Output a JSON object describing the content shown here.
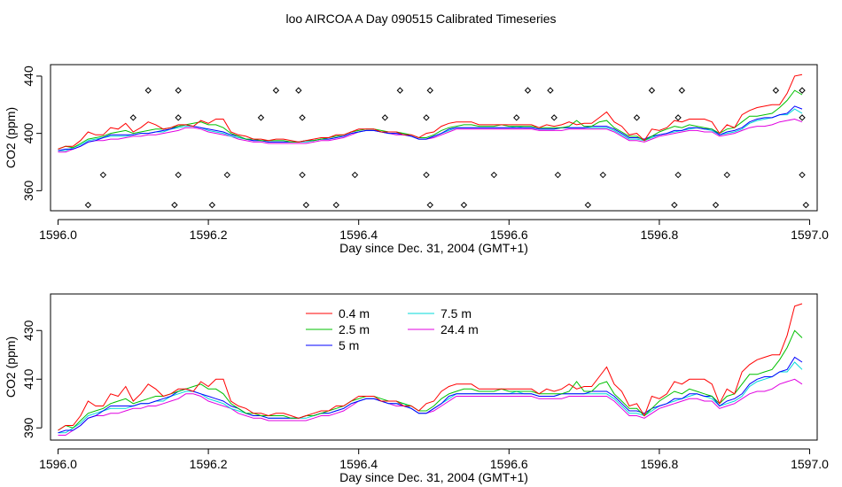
{
  "title": "loo AIRCOA A  Day 090515  Calibrated Timeseries",
  "colors": {
    "0.4 m": "#ff0000",
    "2.5 m": "#00c000",
    "5 m": "#0000ff",
    "7.5 m": "#00d8d8",
    "24.4 m": "#e000e0"
  },
  "chart_data": [
    {
      "type": "line",
      "title": "loo AIRCOA A  Day 090515  Calibrated Timeseries",
      "xlabel": "Day since Dec. 31, 2004 (GMT+1)",
      "ylabel": "CO2 (ppm)",
      "xlim": [
        1595.99,
        1597.01
      ],
      "ylim": [
        346,
        448
      ],
      "xticks": [
        1596.0,
        1596.2,
        1596.4,
        1596.6,
        1596.8,
        1597.0
      ],
      "xticklabels": [
        "1596.0",
        "1596.2",
        "1596.4",
        "1596.6",
        "1596.8",
        "1597.0"
      ],
      "yticks": [
        360,
        400,
        440
      ],
      "yticklabels": [
        "360",
        "400",
        "440"
      ],
      "legend": "none",
      "grid": false,
      "x": [
        1596.0,
        1596.01,
        1596.02,
        1596.03,
        1596.04,
        1596.05,
        1596.06,
        1596.07,
        1596.08,
        1596.09,
        1596.1,
        1596.11,
        1596.12,
        1596.13,
        1596.14,
        1596.15,
        1596.16,
        1596.17,
        1596.18,
        1596.19,
        1596.2,
        1596.21,
        1596.22,
        1596.23,
        1596.24,
        1596.25,
        1596.26,
        1596.27,
        1596.28,
        1596.29,
        1596.3,
        1596.31,
        1596.32,
        1596.33,
        1596.34,
        1596.35,
        1596.36,
        1596.37,
        1596.38,
        1596.39,
        1596.4,
        1596.41,
        1596.42,
        1596.43,
        1596.44,
        1596.45,
        1596.46,
        1596.47,
        1596.48,
        1596.49,
        1596.5,
        1596.51,
        1596.52,
        1596.53,
        1596.54,
        1596.55,
        1596.56,
        1596.57,
        1596.58,
        1596.59,
        1596.6,
        1596.61,
        1596.62,
        1596.63,
        1596.64,
        1596.65,
        1596.66,
        1596.67,
        1596.68,
        1596.69,
        1596.7,
        1596.71,
        1596.72,
        1596.73,
        1596.74,
        1596.75,
        1596.76,
        1596.77,
        1596.78,
        1596.79,
        1596.8,
        1596.81,
        1596.82,
        1596.83,
        1596.84,
        1596.85,
        1596.86,
        1596.87,
        1596.88,
        1596.89,
        1596.9,
        1596.91,
        1596.92,
        1596.93,
        1596.94,
        1596.95,
        1596.96,
        1596.97,
        1596.98,
        1596.99
      ],
      "series": [
        {
          "name": "0.4 m",
          "values": [
            389,
            391,
            391,
            395,
            401,
            399,
            399,
            404,
            403,
            407,
            401,
            404,
            408,
            406,
            403,
            404,
            406,
            406,
            405,
            409,
            407,
            410,
            410,
            401,
            399,
            398,
            396,
            396,
            395,
            396,
            396,
            395,
            394,
            395,
            396,
            397,
            397,
            399,
            399,
            401,
            403,
            403,
            403,
            401,
            401,
            401,
            399,
            399,
            397,
            400,
            401,
            405,
            407,
            408,
            408,
            408,
            406,
            406,
            406,
            406,
            406,
            406,
            406,
            406,
            404,
            406,
            405,
            406,
            408,
            406,
            407,
            407,
            411,
            415,
            408,
            405,
            399,
            400,
            395,
            403,
            402,
            404,
            409,
            408,
            410,
            410,
            410,
            408,
            400,
            406,
            404,
            413,
            416,
            418,
            419,
            420,
            420,
            428,
            440,
            441
          ]
        },
        {
          "name": "2.5 m",
          "values": [
            389,
            391,
            390,
            393,
            396,
            397,
            398,
            400,
            401,
            402,
            400,
            401,
            402,
            403,
            403,
            404,
            405,
            406,
            407,
            408,
            406,
            406,
            404,
            400,
            398,
            396,
            396,
            395,
            395,
            395,
            395,
            394,
            394,
            395,
            395,
            396,
            397,
            398,
            399,
            401,
            402,
            403,
            403,
            402,
            401,
            401,
            400,
            399,
            397,
            397,
            399,
            402,
            404,
            405,
            406,
            406,
            405,
            405,
            405,
            406,
            405,
            405,
            405,
            405,
            404,
            404,
            404,
            404,
            405,
            409,
            405,
            405,
            408,
            409,
            404,
            401,
            398,
            398,
            395,
            398,
            401,
            403,
            405,
            404,
            406,
            405,
            404,
            403,
            400,
            403,
            404,
            408,
            412,
            412,
            413,
            414,
            418,
            423,
            430,
            427
          ]
        },
        {
          "name": "5 m",
          "values": [
            388,
            389,
            389,
            391,
            394,
            395,
            397,
            399,
            399,
            399,
            399,
            400,
            400,
            401,
            402,
            403,
            405,
            406,
            405,
            404,
            403,
            402,
            401,
            399,
            398,
            396,
            395,
            395,
            394,
            394,
            394,
            394,
            394,
            395,
            395,
            396,
            396,
            397,
            398,
            400,
            401,
            402,
            402,
            401,
            400,
            400,
            399,
            398,
            396,
            396,
            398,
            400,
            403,
            404,
            404,
            404,
            404,
            404,
            404,
            404,
            404,
            404,
            404,
            404,
            403,
            403,
            403,
            404,
            404,
            404,
            404,
            405,
            405,
            405,
            403,
            400,
            397,
            397,
            396,
            398,
            399,
            400,
            402,
            402,
            404,
            404,
            403,
            403,
            399,
            401,
            402,
            404,
            408,
            410,
            411,
            411,
            413,
            414,
            419,
            417
          ]
        },
        {
          "name": "7.5 m",
          "values": [
            388,
            388,
            390,
            392,
            395,
            396,
            397,
            398,
            398,
            398,
            399,
            400,
            400,
            401,
            401,
            403,
            404,
            405,
            405,
            404,
            402,
            401,
            400,
            398,
            397,
            396,
            395,
            395,
            394,
            394,
            394,
            394,
            394,
            394,
            395,
            396,
            396,
            397,
            398,
            400,
            401,
            402,
            402,
            401,
            400,
            400,
            400,
            398,
            396,
            396,
            398,
            400,
            402,
            404,
            404,
            404,
            404,
            404,
            404,
            404,
            404,
            405,
            404,
            404,
            403,
            403,
            403,
            404,
            404,
            404,
            404,
            404,
            404,
            404,
            402,
            399,
            396,
            396,
            395,
            397,
            399,
            400,
            401,
            402,
            403,
            404,
            403,
            402,
            399,
            400,
            401,
            403,
            407,
            409,
            410,
            411,
            413,
            413,
            417,
            414
          ]
        },
        {
          "name": "24.4 m",
          "values": [
            387,
            387,
            389,
            391,
            394,
            395,
            395,
            396,
            396,
            397,
            398,
            398,
            399,
            399,
            400,
            401,
            402,
            404,
            404,
            403,
            401,
            400,
            399,
            398,
            396,
            395,
            394,
            394,
            393,
            393,
            393,
            393,
            393,
            393,
            394,
            395,
            395,
            396,
            397,
            399,
            401,
            402,
            402,
            401,
            400,
            399,
            399,
            398,
            396,
            396,
            397,
            399,
            401,
            403,
            403,
            403,
            403,
            403,
            403,
            403,
            403,
            403,
            403,
            403,
            402,
            402,
            402,
            402,
            403,
            403,
            403,
            403,
            403,
            403,
            401,
            398,
            395,
            395,
            394,
            396,
            398,
            399,
            400,
            401,
            402,
            402,
            401,
            401,
            398,
            399,
            400,
            402,
            404,
            405,
            405,
            406,
            408,
            409,
            410,
            408
          ]
        }
      ],
      "points": {
        "x": [
          1596.04,
          1596.06,
          1596.1,
          1596.12,
          1596.155,
          1596.16,
          1596.16,
          1596.16,
          1596.205,
          1596.225,
          1596.27,
          1596.29,
          1596.32,
          1596.325,
          1596.325,
          1596.33,
          1596.37,
          1596.395,
          1596.435,
          1596.455,
          1596.49,
          1596.49,
          1596.495,
          1596.495,
          1596.54,
          1596.58,
          1596.61,
          1596.625,
          1596.655,
          1596.66,
          1596.665,
          1596.705,
          1596.725,
          1596.77,
          1596.79,
          1596.82,
          1596.825,
          1596.825,
          1596.83,
          1596.875,
          1596.89,
          1596.955,
          1596.99,
          1596.99,
          1596.99,
          1596.995
        ],
        "y": [
          350,
          371,
          411,
          430,
          350,
          430,
          371,
          411,
          350,
          371,
          411,
          430,
          430,
          411,
          371,
          350,
          350,
          371,
          411,
          430,
          411,
          371,
          430,
          350,
          350,
          371,
          411,
          430,
          430,
          411,
          371,
          350,
          371,
          411,
          430,
          350,
          411,
          371,
          430,
          350,
          371,
          430,
          430,
          411,
          371,
          350
        ]
      }
    },
    {
      "type": "line",
      "xlabel": "Day since Dec. 31, 2004 (GMT+1)",
      "ylabel": "CO2 (ppm)",
      "xlim": [
        1595.99,
        1597.01
      ],
      "ylim": [
        385,
        445
      ],
      "xticks": [
        1596.0,
        1596.2,
        1596.4,
        1596.6,
        1596.8,
        1597.0
      ],
      "xticklabels": [
        "1596.0",
        "1596.2",
        "1596.4",
        "1596.6",
        "1596.8",
        "1597.0"
      ],
      "yticks": [
        390,
        410,
        430
      ],
      "yticklabels": [
        "390",
        "410",
        "430"
      ],
      "legend": "top-center",
      "legend_entries": [
        "0.4 m",
        "2.5 m",
        "5 m",
        "7.5 m",
        "24.4 m"
      ],
      "grid": false,
      "series_ref": "same as chart_data[0].series"
    }
  ]
}
